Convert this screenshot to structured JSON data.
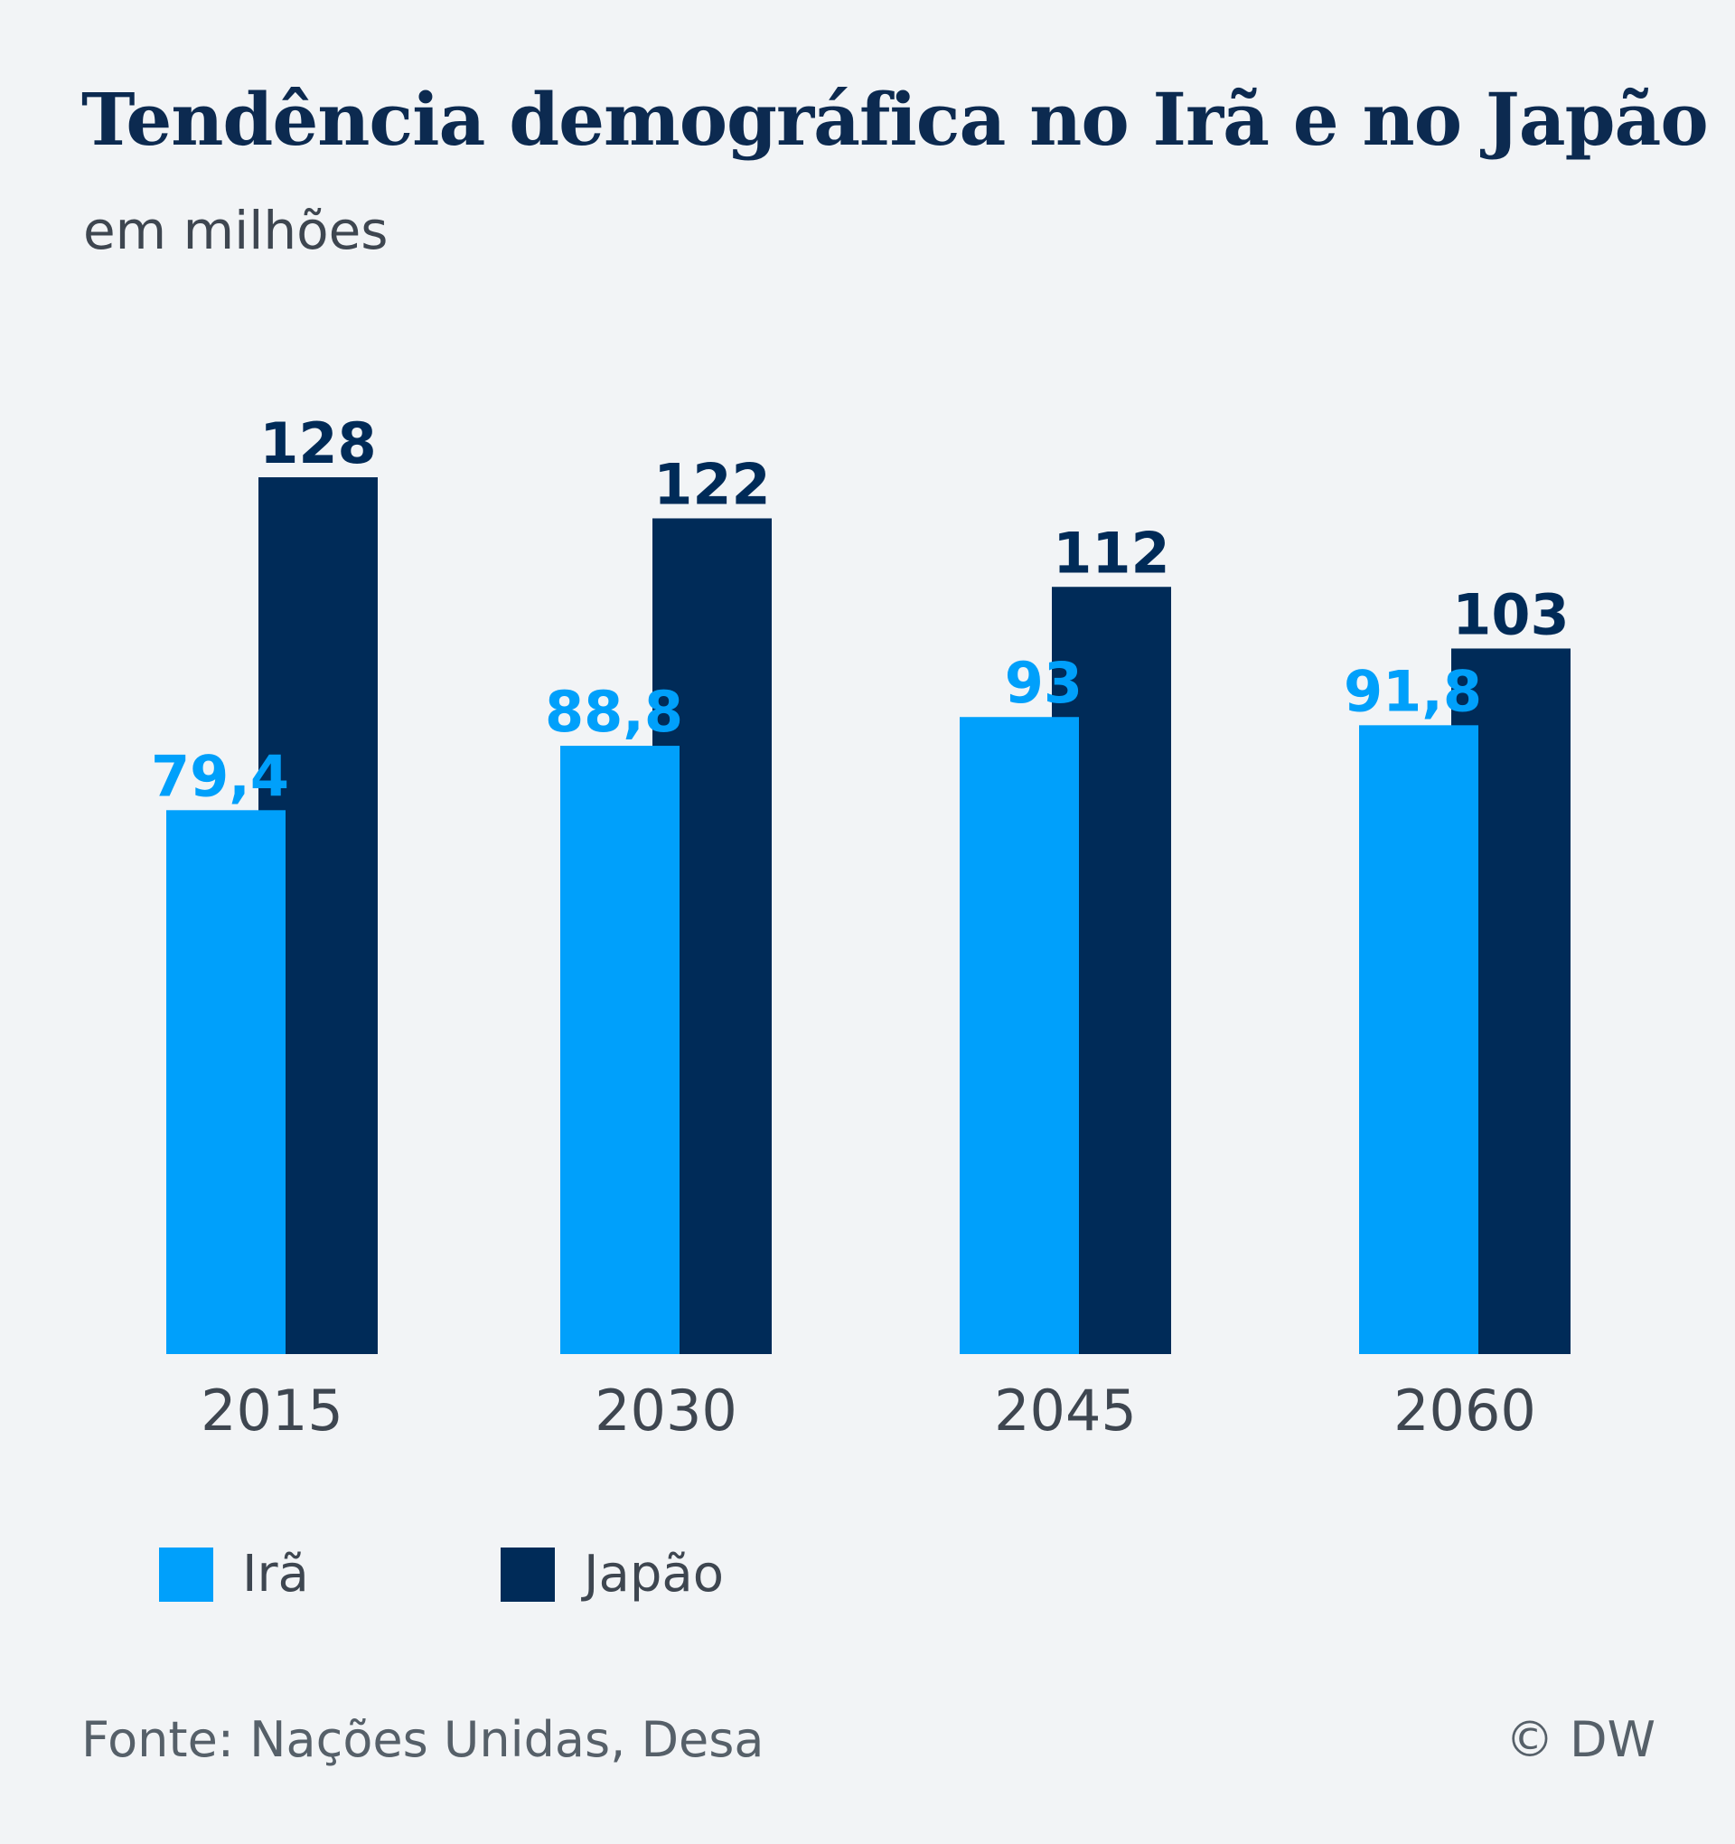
{
  "chart_data": {
    "type": "bar",
    "title": "Tendência demográfica no Irã e no Japão",
    "subtitle": "em milhões",
    "categories": [
      "2015",
      "2030",
      "2045",
      "2060"
    ],
    "series": [
      {
        "name": "Irã",
        "color": "#00a0fb",
        "values": [
          79.4,
          88.8,
          93,
          91.8
        ],
        "labels": [
          "79,4",
          "88,8",
          "93",
          "91,8"
        ]
      },
      {
        "name": "Japão",
        "color": "#002b58",
        "values": [
          128,
          122,
          112,
          103
        ],
        "labels": [
          "128",
          "122",
          "112",
          "103"
        ]
      }
    ],
    "ylim": [
      0,
      128
    ],
    "grid": false,
    "legend_position": "bottom-left",
    "source": "Fonte: Nações Unidas, Desa",
    "credit": "© DW"
  }
}
